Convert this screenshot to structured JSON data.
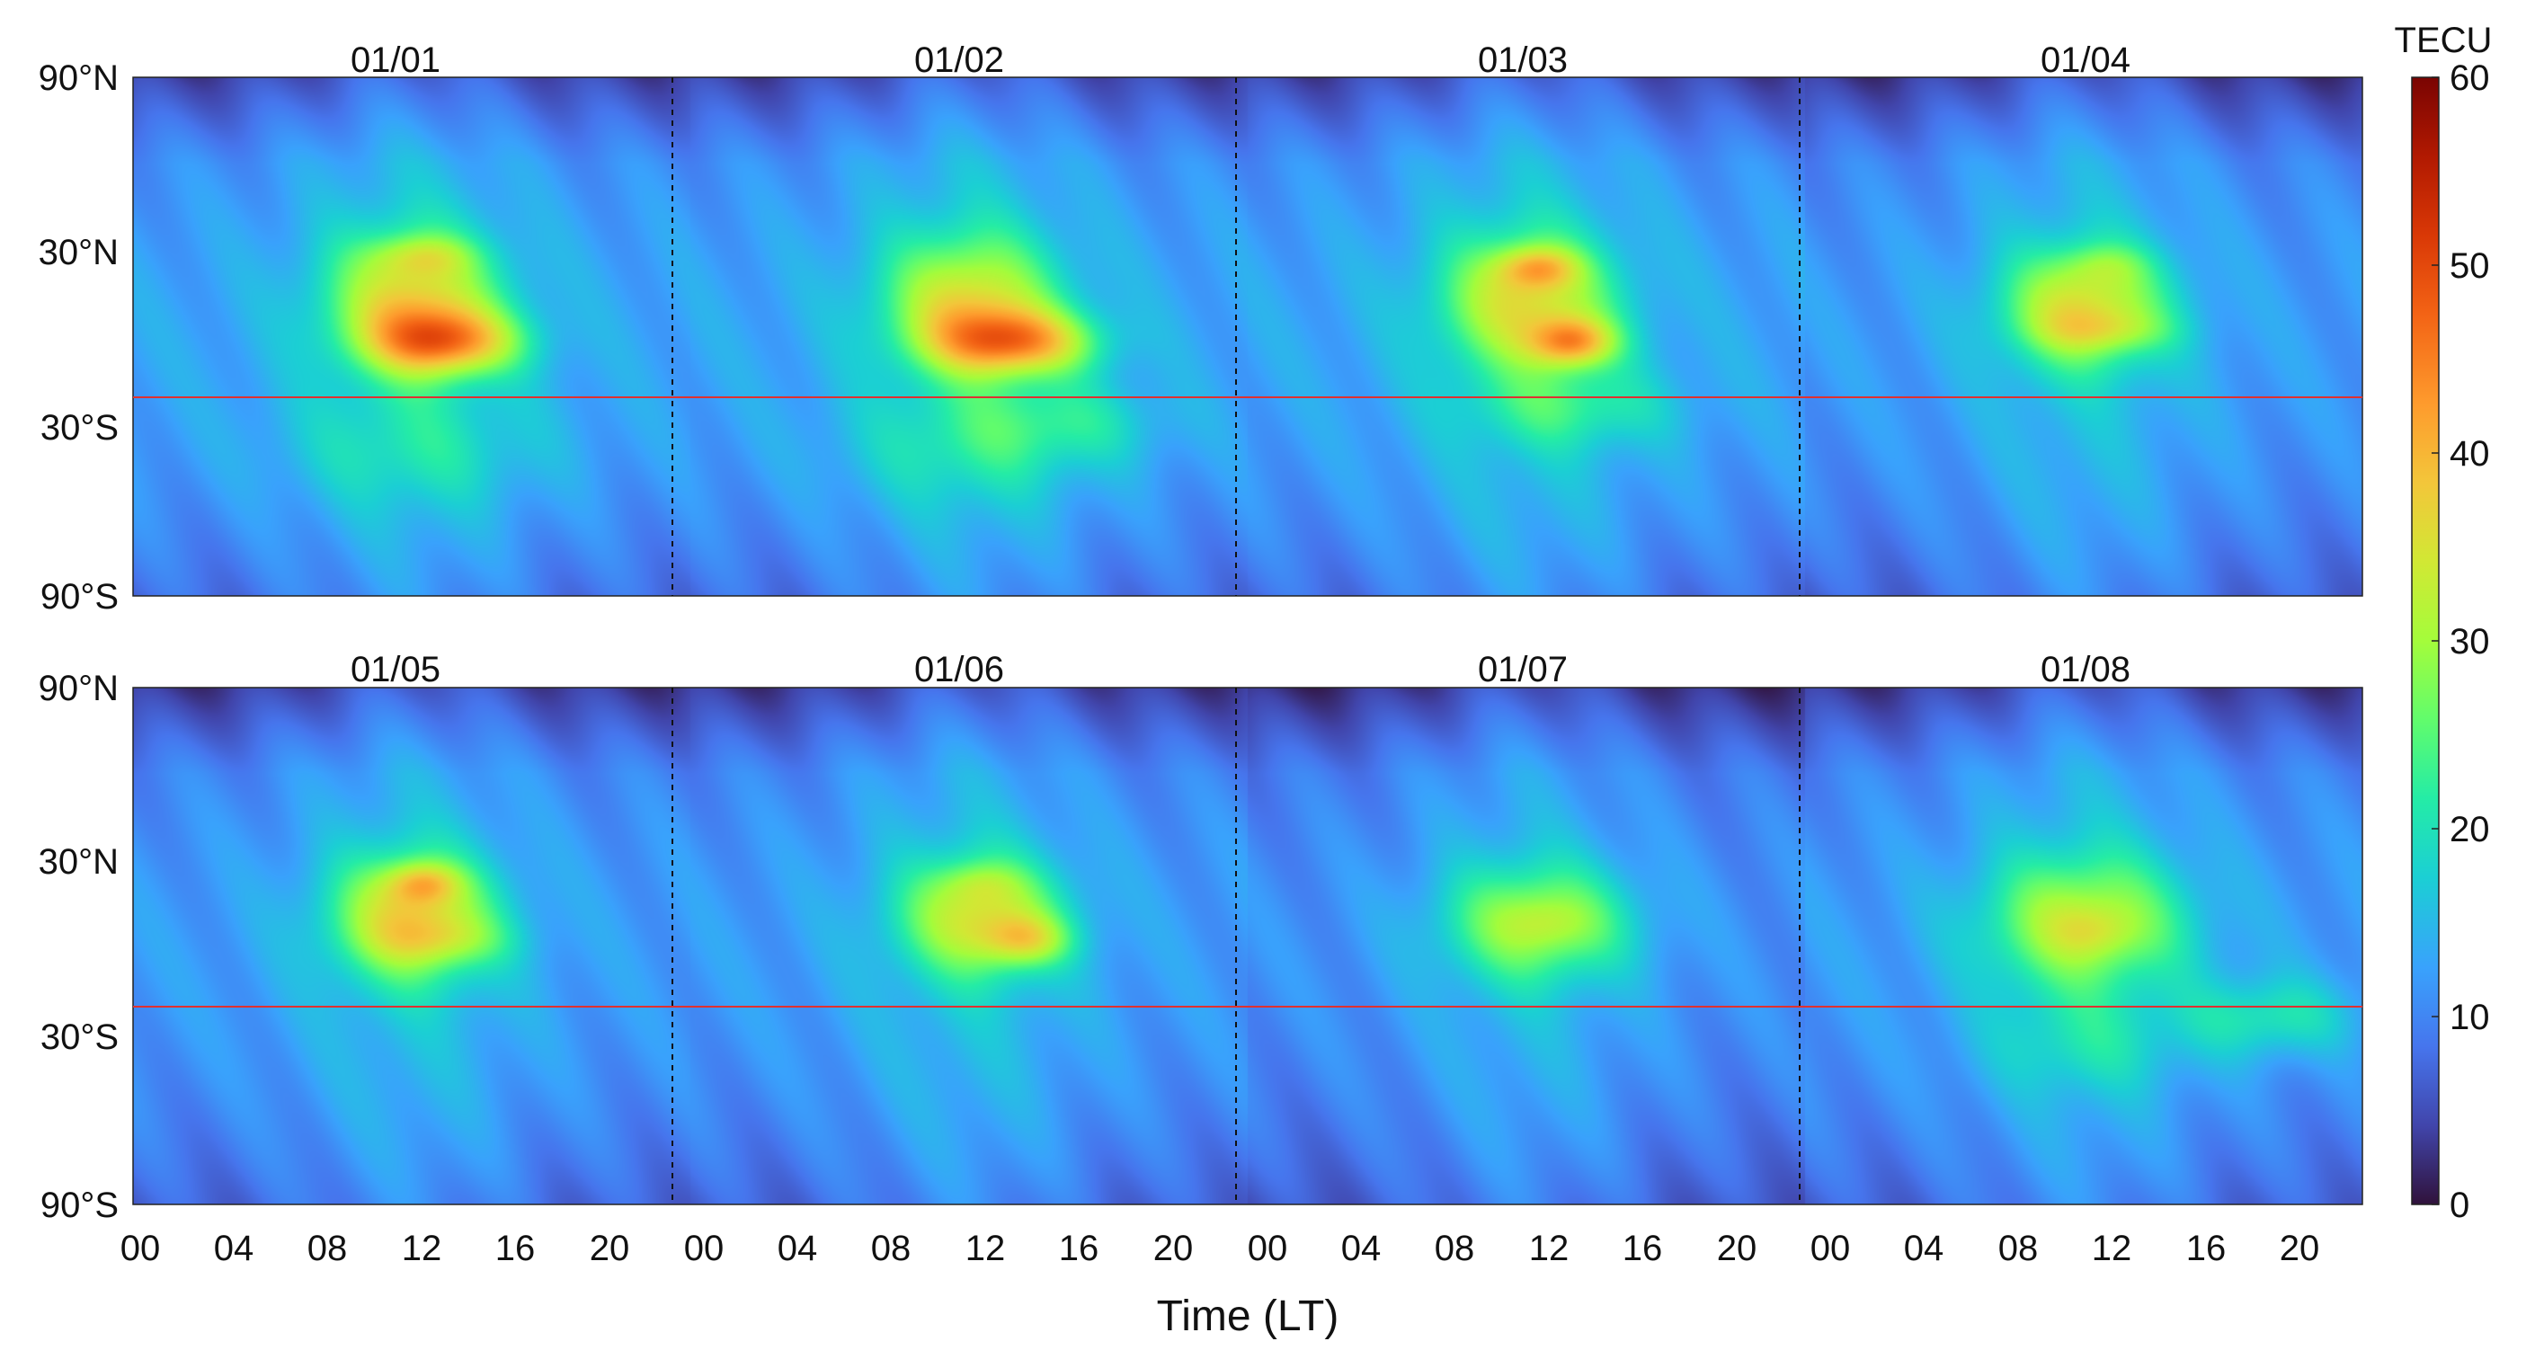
{
  "chart_data": {
    "type": "heatmap",
    "title": "",
    "xlabel": "Time (LT)",
    "ylabel": "",
    "x_ticks": [
      "00",
      "04",
      "08",
      "12",
      "16",
      "20"
    ],
    "y_ticks": [
      "90°N",
      "30°N",
      "30°S",
      "90°S"
    ],
    "y_tick_values": [
      90,
      30,
      -30,
      -90
    ],
    "ylim": [
      -90,
      90
    ],
    "xlim_hours": [
      0,
      24
    ],
    "equator_line": 0,
    "panels": [
      "01/01",
      "01/02",
      "01/03",
      "01/04",
      "01/05",
      "01/06",
      "01/07",
      "01/08"
    ],
    "colorbar": {
      "label": "TECU",
      "range": [
        0,
        60
      ],
      "ticks": [
        "0",
        "10",
        "20",
        "30",
        "40",
        "50",
        "60"
      ],
      "tick_values": [
        0,
        10,
        20,
        30,
        40,
        50,
        60
      ]
    },
    "days": [
      {
        "label": "01/01",
        "base": 13,
        "hotspots": [
          {
            "lt": 12.0,
            "lat": 12,
            "amp": 20,
            "slt": 2.5,
            "slat": 16
          },
          {
            "lt": 13.5,
            "lat": -2,
            "amp": 22,
            "slt": 2.2,
            "slat": 8
          },
          {
            "lt": 12.5,
            "lat": 28,
            "amp": 8,
            "slt": 1.5,
            "slat": 5
          },
          {
            "lt": 12.0,
            "lat": -40,
            "amp": 5,
            "slt": 4,
            "slat": 14
          }
        ]
      },
      {
        "label": "01/02",
        "base": 13,
        "hotspots": [
          {
            "lt": 12.0,
            "lat": 12,
            "amp": 19,
            "slt": 2.5,
            "slat": 16
          },
          {
            "lt": 14.0,
            "lat": -2,
            "amp": 23,
            "slt": 2.4,
            "slat": 8
          },
          {
            "lt": 16.0,
            "lat": -30,
            "amp": 6,
            "slt": 3,
            "slat": 10
          },
          {
            "lt": 12.0,
            "lat": -40,
            "amp": 5,
            "slt": 4,
            "slat": 14
          }
        ]
      },
      {
        "label": "01/03",
        "base": 13,
        "hotspots": [
          {
            "lt": 12.0,
            "lat": 12,
            "amp": 19,
            "slt": 2.5,
            "slat": 16
          },
          {
            "lt": 12.5,
            "lat": 24,
            "amp": 13,
            "slt": 1.2,
            "slat": 5
          },
          {
            "lt": 14.0,
            "lat": -2,
            "amp": 20,
            "slt": 1.3,
            "slat": 6
          },
          {
            "lt": 14.0,
            "lat": -25,
            "amp": 7,
            "slt": 3,
            "slat": 10
          }
        ]
      },
      {
        "label": "01/04",
        "base": 12,
        "hotspots": [
          {
            "lt": 12.0,
            "lat": 10,
            "amp": 20,
            "slt": 2.4,
            "slat": 14
          },
          {
            "lt": 13.0,
            "lat": 2,
            "amp": 6,
            "slt": 2,
            "slat": 5
          },
          {
            "lt": 13.0,
            "lat": 25,
            "amp": 5,
            "slt": 1.3,
            "slat": 5
          }
        ]
      },
      {
        "label": "01/05",
        "base": 12,
        "hotspots": [
          {
            "lt": 12.0,
            "lat": 10,
            "amp": 21,
            "slt": 2.4,
            "slat": 15
          },
          {
            "lt": 12.5,
            "lat": 22,
            "amp": 12,
            "slt": 1.1,
            "slat": 5
          },
          {
            "lt": 13.5,
            "lat": 2,
            "amp": 6,
            "slt": 2,
            "slat": 6
          }
        ]
      },
      {
        "label": "01/06",
        "base": 12,
        "hotspots": [
          {
            "lt": 12.5,
            "lat": 10,
            "amp": 19,
            "slt": 2.4,
            "slat": 14
          },
          {
            "lt": 14.5,
            "lat": 2,
            "amp": 12,
            "slt": 1.3,
            "slat": 6
          },
          {
            "lt": 12.5,
            "lat": 22,
            "amp": 5,
            "slt": 1.2,
            "slat": 5
          }
        ]
      },
      {
        "label": "01/07",
        "base": 11,
        "hotspots": [
          {
            "lt": 12.5,
            "lat": 8,
            "amp": 16,
            "slt": 2.8,
            "slat": 14
          },
          {
            "lt": 13.0,
            "lat": 8,
            "amp": 3,
            "slt": 1.3,
            "slat": 6
          }
        ]
      },
      {
        "label": "01/08",
        "base": 12,
        "hotspots": [
          {
            "lt": 12.0,
            "lat": 8,
            "amp": 17,
            "slt": 3,
            "slat": 16
          },
          {
            "lt": 12.5,
            "lat": 5,
            "amp": 4,
            "slt": 1.2,
            "slat": 6
          },
          {
            "lt": 20.0,
            "lat": -25,
            "amp": 9,
            "slt": 2.5,
            "slat": 10
          },
          {
            "lt": 12.0,
            "lat": -35,
            "amp": 5,
            "slt": 3,
            "slat": 12
          }
        ]
      }
    ]
  }
}
